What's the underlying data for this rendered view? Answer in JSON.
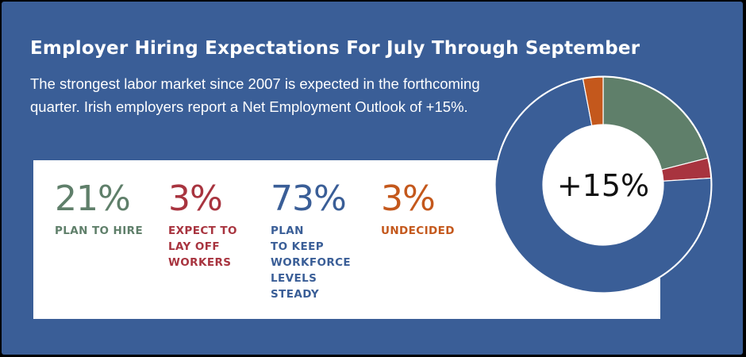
{
  "header": {
    "title": "Employer Hiring Expectations For July Through September",
    "subtitle": "The strongest labor market since 2007 is expected in the forthcoming quarter. Irish employers report a Net Employment Outlook of +15%."
  },
  "stats": [
    {
      "value": "21%",
      "label": "PLAN TO HIRE",
      "color": "#5f7f6a"
    },
    {
      "value": "3%",
      "label": "EXPECT TO\nLAY OFF\nWORKERS",
      "color": "#a8343f"
    },
    {
      "value": "73%",
      "label": "PLAN\nTO KEEP\nWORKFORCE\nLEVELS\nSTEADY",
      "color": "#3a5e97"
    },
    {
      "value": "3%",
      "label": "UNDECIDED",
      "color": "#c4581c"
    }
  ],
  "chart_data": {
    "type": "pie",
    "center_label": "+15%",
    "slices": [
      {
        "name": "PLAN TO HIRE",
        "value": 21,
        "color": "#5f7f6a"
      },
      {
        "name": "EXPECT TO LAY OFF WORKERS",
        "value": 3,
        "color": "#a8343f"
      },
      {
        "name": "PLAN TO KEEP WORKFORCE LEVELS STEADY",
        "value": 73,
        "color": "#3a5e97"
      },
      {
        "name": "UNDECIDED",
        "value": 3,
        "color": "#c4581c"
      }
    ]
  }
}
